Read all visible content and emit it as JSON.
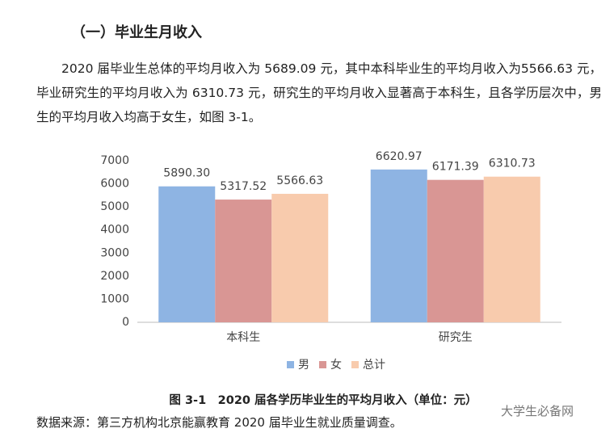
{
  "heading": "（一）毕业生月收入",
  "paragraph": "2020 届毕业生总体的平均月收入为 5689.09 元，其中本科毕业生的平均月收入为5566.63 元，毕业研究生的平均月收入为 6310.73 元，研究生的平均月收入显著高于本科生，且各学历层次中，男生的平均月收入均高于女生，如图 3-1。",
  "chart_data": {
    "type": "bar",
    "categories": [
      "本科生",
      "研究生"
    ],
    "series": [
      {
        "name": "男",
        "color": "#8eb4e3",
        "values": [
          5890.3,
          6620.97
        ],
        "value_labels": [
          "5890.30",
          "6620.97"
        ]
      },
      {
        "name": "女",
        "color": "#d99694",
        "values": [
          5317.52,
          6171.39
        ]
      },
      {
        "name": "总计",
        "color": "#f8cbad",
        "values": [
          5566.63,
          6310.73
        ]
      }
    ],
    "ylim": [
      0,
      7000
    ],
    "yticks": [
      0,
      1000,
      2000,
      3000,
      4000,
      5000,
      6000,
      7000
    ],
    "grid": false,
    "legend": "bottom"
  },
  "caption": "图 3-1　2020 届各学历毕业生的平均月收入（单位：元）",
  "source": "数据来源：第三方机构北京能赢教育 2020 届毕业生就业质量调查。",
  "watermark": "大学生必备网"
}
